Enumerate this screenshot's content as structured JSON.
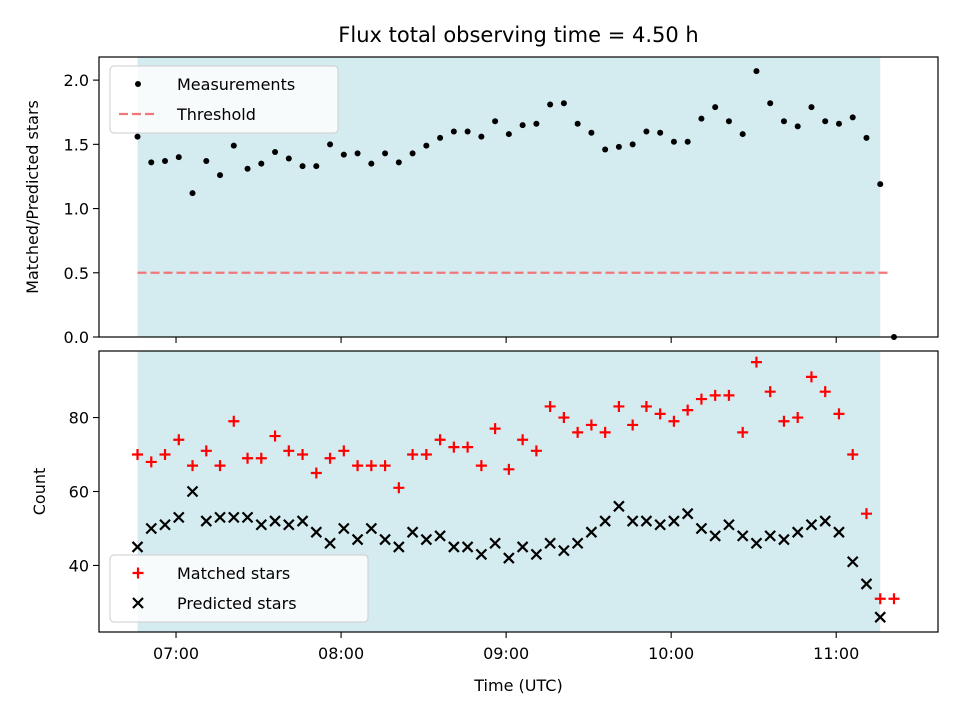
{
  "title": "Flux total observing time = 4.50 h",
  "colors": {
    "measurements": "#000000",
    "threshold": "#f07878",
    "matched": "#ff0000",
    "predicted": "#000000",
    "observing_window": "#d4ebf0"
  },
  "chart_data": [
    {
      "type": "scatter",
      "ylabel": "Matched/Predicted stars",
      "ylim": [
        0,
        2.18
      ],
      "yticks": [
        0.0,
        0.5,
        1.0,
        1.5,
        2.0
      ],
      "yticklabels": [
        "0.0",
        "0.5",
        "1.0",
        "1.5",
        "2.0"
      ],
      "xlim": [
        "06:32",
        "11:37"
      ],
      "observing_window": [
        "06:46",
        "11:16"
      ],
      "legend_position": "upper left",
      "series": [
        {
          "name": "Measurements",
          "marker": "dot",
          "x": [
            "06:46",
            "06:51",
            "06:56",
            "07:01",
            "07:06",
            "07:11",
            "07:16",
            "07:21",
            "07:26",
            "07:31",
            "07:36",
            "07:41",
            "07:46",
            "07:51",
            "07:56",
            "08:01",
            "08:06",
            "08:11",
            "08:16",
            "08:21",
            "08:26",
            "08:31",
            "08:36",
            "08:41",
            "08:46",
            "08:51",
            "08:56",
            "09:01",
            "09:06",
            "09:11",
            "09:16",
            "09:21",
            "09:26",
            "09:31",
            "09:36",
            "09:41",
            "09:46",
            "09:51",
            "09:56",
            "10:01",
            "10:06",
            "10:11",
            "10:16",
            "10:21",
            "10:26",
            "10:31",
            "10:36",
            "10:41",
            "10:46",
            "10:51",
            "10:56",
            "11:01",
            "11:06",
            "11:11",
            "11:16",
            "11:21"
          ],
          "y": [
            1.56,
            1.36,
            1.37,
            1.4,
            1.12,
            1.37,
            1.26,
            1.49,
            1.31,
            1.35,
            1.44,
            1.39,
            1.33,
            1.33,
            1.5,
            1.42,
            1.43,
            1.35,
            1.43,
            1.36,
            1.43,
            1.49,
            1.55,
            1.6,
            1.6,
            1.56,
            1.68,
            1.58,
            1.65,
            1.66,
            1.81,
            1.82,
            1.66,
            1.59,
            1.46,
            1.48,
            1.5,
            1.6,
            1.59,
            1.52,
            1.52,
            1.7,
            1.79,
            1.68,
            1.58,
            2.07,
            1.82,
            1.68,
            1.64,
            1.79,
            1.68,
            1.66,
            1.71,
            1.55,
            1.19,
            0.0
          ]
        },
        {
          "name": "Threshold",
          "marker": "dashed-line",
          "x": [
            "06:46",
            "11:19"
          ],
          "y": [
            0.5,
            0.5
          ]
        }
      ]
    },
    {
      "type": "scatter",
      "xlabel": "Time (UTC)",
      "ylabel": "Count",
      "ylim": [
        22,
        98
      ],
      "yticks": [
        40,
        60,
        80
      ],
      "yticklabels": [
        "40",
        "60",
        "80"
      ],
      "xlim": [
        "06:32",
        "11:37"
      ],
      "xticks": [
        "07:00",
        "08:00",
        "09:00",
        "10:00",
        "11:00"
      ],
      "observing_window": [
        "06:46",
        "11:16"
      ],
      "legend_position": "lower left",
      "series": [
        {
          "name": "Matched stars",
          "marker": "plus",
          "x": [
            "06:46",
            "06:51",
            "06:56",
            "07:01",
            "07:06",
            "07:11",
            "07:16",
            "07:21",
            "07:26",
            "07:31",
            "07:36",
            "07:41",
            "07:46",
            "07:51",
            "07:56",
            "08:01",
            "08:06",
            "08:11",
            "08:16",
            "08:21",
            "08:26",
            "08:31",
            "08:36",
            "08:41",
            "08:46",
            "08:51",
            "08:56",
            "09:01",
            "09:06",
            "09:11",
            "09:16",
            "09:21",
            "09:26",
            "09:31",
            "09:36",
            "09:41",
            "09:46",
            "09:51",
            "09:56",
            "10:01",
            "10:06",
            "10:11",
            "10:16",
            "10:21",
            "10:26",
            "10:31",
            "10:36",
            "10:41",
            "10:46",
            "10:51",
            "10:56",
            "11:01",
            "11:06",
            "11:11",
            "11:16",
            "11:21"
          ],
          "y": [
            70,
            68,
            70,
            74,
            67,
            71,
            67,
            79,
            69,
            69,
            75,
            71,
            70,
            65,
            69,
            71,
            67,
            67,
            67,
            61,
            70,
            70,
            74,
            72,
            72,
            67,
            77,
            66,
            74,
            71,
            83,
            80,
            76,
            78,
            76,
            83,
            78,
            83,
            81,
            79,
            82,
            85,
            86,
            86,
            76,
            95,
            87,
            79,
            80,
            91,
            87,
            81,
            70,
            54,
            31,
            31
          ]
        },
        {
          "name": "Predicted stars",
          "marker": "x",
          "x": [
            "06:46",
            "06:51",
            "06:56",
            "07:01",
            "07:06",
            "07:11",
            "07:16",
            "07:21",
            "07:26",
            "07:31",
            "07:36",
            "07:41",
            "07:46",
            "07:51",
            "07:56",
            "08:01",
            "08:06",
            "08:11",
            "08:16",
            "08:21",
            "08:26",
            "08:31",
            "08:36",
            "08:41",
            "08:46",
            "08:51",
            "08:56",
            "09:01",
            "09:06",
            "09:11",
            "09:16",
            "09:21",
            "09:26",
            "09:31",
            "09:36",
            "09:41",
            "09:46",
            "09:51",
            "09:56",
            "10:01",
            "10:06",
            "10:11",
            "10:16",
            "10:21",
            "10:26",
            "10:31",
            "10:36",
            "10:41",
            "10:46",
            "10:51",
            "10:56",
            "11:01",
            "11:06",
            "11:11",
            "11:16"
          ],
          "y": [
            45,
            50,
            51,
            53,
            60,
            52,
            53,
            53,
            53,
            51,
            52,
            51,
            52,
            49,
            46,
            50,
            47,
            50,
            47,
            45,
            49,
            47,
            48,
            45,
            45,
            43,
            46,
            42,
            45,
            43,
            46,
            44,
            46,
            49,
            52,
            56,
            52,
            52,
            51,
            52,
            54,
            50,
            48,
            51,
            48,
            46,
            48,
            47,
            49,
            51,
            52,
            49,
            41,
            35,
            26
          ]
        }
      ]
    }
  ]
}
